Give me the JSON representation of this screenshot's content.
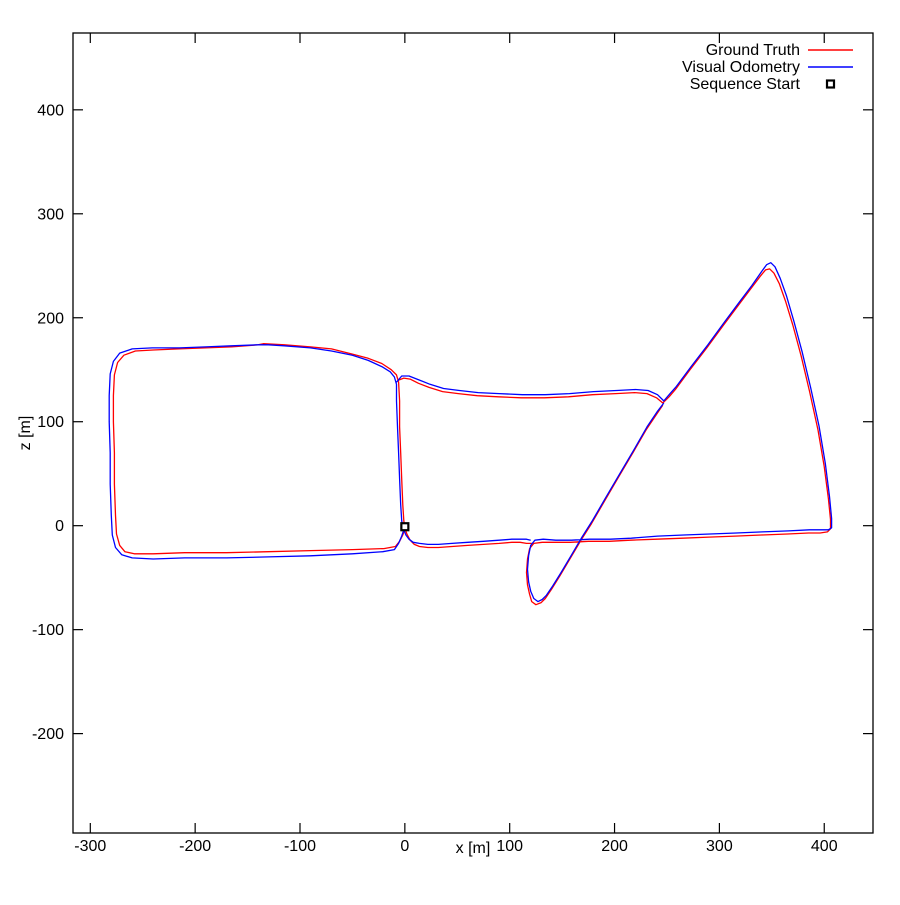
{
  "figure": {
    "background": "#ffffff",
    "axis_color": "#000000"
  },
  "chart_data": {
    "type": "line",
    "title": "",
    "xlabel": "x [m]",
    "ylabel": "z [m]",
    "xlim": [
      -316.5,
      446.5
    ],
    "ylim": [
      -295.6,
      473.9
    ],
    "x_ticks": [
      -300,
      -200,
      -100,
      0,
      100,
      200,
      300,
      400
    ],
    "y_ticks": [
      400,
      300,
      200,
      100,
      0,
      -100,
      -200
    ],
    "grid": false,
    "legend_position": "top-right-inside",
    "series": [
      {
        "name": "Ground Truth",
        "color": "#ff0000",
        "style": "line",
        "segments": [
          [
            [
              0,
              -3
            ],
            [
              -2,
              -9
            ],
            [
              -5,
              -15
            ],
            [
              -9,
              -20
            ],
            [
              -20,
              -22
            ],
            [
              -50,
              -23
            ],
            [
              -90,
              -24
            ],
            [
              -130,
              -25
            ],
            [
              -170,
              -26
            ],
            [
              -210,
              -26
            ],
            [
              -240,
              -27
            ],
            [
              -258,
              -27
            ],
            [
              -267,
              -25
            ],
            [
              -272,
              -19
            ],
            [
              -275,
              -8
            ],
            [
              -276,
              10
            ],
            [
              -277,
              40
            ],
            [
              -277,
              70
            ],
            [
              -278,
              100
            ],
            [
              -278,
              125
            ],
            [
              -277,
              145
            ],
            [
              -274,
              157
            ],
            [
              -268,
              164
            ],
            [
              -257,
              168
            ],
            [
              -240,
              169
            ],
            [
              -215,
              170
            ],
            [
              -190,
              171
            ],
            [
              -165,
              172
            ],
            [
              -140,
              174
            ],
            [
              -135,
              175
            ],
            [
              -115,
              174
            ],
            [
              -90,
              172
            ],
            [
              -70,
              170
            ],
            [
              -50,
              165
            ],
            [
              -35,
              161
            ],
            [
              -22,
              156
            ],
            [
              -13,
              150
            ],
            [
              -8,
              145
            ],
            [
              -6,
              138
            ],
            [
              -5,
              120
            ],
            [
              -5,
              95
            ],
            [
              -4,
              70
            ],
            [
              -3,
              45
            ],
            [
              -2,
              20
            ],
            [
              -1,
              5
            ],
            [
              0,
              -2
            ]
          ],
          [
            [
              -6,
              140
            ],
            [
              -1,
              142
            ],
            [
              5,
              141
            ],
            [
              13,
              137
            ],
            [
              23,
              133
            ],
            [
              36,
              129
            ],
            [
              51,
              127
            ],
            [
              69,
              125
            ],
            [
              89,
              124
            ],
            [
              111,
              123
            ],
            [
              133,
              123
            ],
            [
              156,
              124
            ],
            [
              179,
              126
            ],
            [
              201,
              127
            ],
            [
              219,
              128
            ],
            [
              231,
              127
            ],
            [
              240,
              123
            ],
            [
              246,
              118
            ],
            [
              252,
              124
            ],
            [
              258,
              131
            ],
            [
              272,
              150
            ],
            [
              288,
              171
            ],
            [
              304,
              193
            ],
            [
              318,
              212
            ],
            [
              330,
              228
            ],
            [
              339,
              240
            ],
            [
              344,
              246
            ],
            [
              348,
              247
            ],
            [
              352,
              243
            ],
            [
              357,
              233
            ],
            [
              363,
              216
            ],
            [
              370,
              193
            ],
            [
              378,
              163
            ],
            [
              386,
              129
            ],
            [
              394,
              92
            ],
            [
              400,
              57
            ],
            [
              404,
              26
            ],
            [
              406,
              6
            ],
            [
              406,
              -3
            ],
            [
              403,
              -6
            ],
            [
              396,
              -7
            ],
            [
              385,
              -7
            ],
            [
              365,
              -8
            ],
            [
              340,
              -9
            ],
            [
              315,
              -10
            ],
            [
              290,
              -11
            ],
            [
              265,
              -12
            ],
            [
              240,
              -13
            ],
            [
              215,
              -14
            ],
            [
              195,
              -15
            ],
            [
              175,
              -15
            ],
            [
              158,
              -16
            ],
            [
              143,
              -16
            ],
            [
              131,
              -16
            ],
            [
              123,
              -17
            ],
            [
              119,
              -22
            ],
            [
              117,
              -32
            ],
            [
              116,
              -45
            ],
            [
              117,
              -57
            ],
            [
              119,
              -66
            ],
            [
              121,
              -73
            ],
            [
              125,
              -76
            ],
            [
              130,
              -74
            ],
            [
              134,
              -70
            ],
            [
              140,
              -61
            ],
            [
              148,
              -48
            ],
            [
              158,
              -31
            ],
            [
              168,
              -14
            ],
            [
              178,
              2
            ],
            [
              190,
              23
            ],
            [
              204,
              47
            ],
            [
              218,
              71
            ],
            [
              230,
              92
            ],
            [
              240,
              107
            ],
            [
              246,
              116
            ]
          ],
          [
            [
              0,
              -2
            ],
            [
              2,
              -8
            ],
            [
              5,
              -14
            ],
            [
              9,
              -18
            ],
            [
              14,
              -20
            ],
            [
              22,
              -21
            ],
            [
              32,
              -21
            ],
            [
              45,
              -20
            ],
            [
              60,
              -19
            ],
            [
              75,
              -18
            ],
            [
              90,
              -17
            ],
            [
              102,
              -16
            ],
            [
              110,
              -16
            ],
            [
              116,
              -17
            ],
            [
              121,
              -17
            ]
          ]
        ]
      },
      {
        "name": "Visual Odometry",
        "color": "#0000ff",
        "style": "line",
        "segments": [
          [
            [
              -1,
              -4
            ],
            [
              -3,
              -10
            ],
            [
              -6,
              -17
            ],
            [
              -10,
              -23
            ],
            [
              -21,
              -25
            ],
            [
              -50,
              -27
            ],
            [
              -90,
              -29
            ],
            [
              -130,
              -30
            ],
            [
              -170,
              -31
            ],
            [
              -210,
              -31
            ],
            [
              -240,
              -32
            ],
            [
              -260,
              -31
            ],
            [
              -270,
              -28
            ],
            [
              -276,
              -21
            ],
            [
              -279,
              -9
            ],
            [
              -280,
              10
            ],
            [
              -281,
              40
            ],
            [
              -281,
              70
            ],
            [
              -282,
              100
            ],
            [
              -282,
              125
            ],
            [
              -281,
              146
            ],
            [
              -278,
              158
            ],
            [
              -272,
              166
            ],
            [
              -260,
              170
            ],
            [
              -241,
              171
            ],
            [
              -215,
              171
            ],
            [
              -190,
              172
            ],
            [
              -165,
              173
            ],
            [
              -140,
              174
            ],
            [
              -130,
              174
            ],
            [
              -115,
              173
            ],
            [
              -90,
              171
            ],
            [
              -70,
              168
            ],
            [
              -50,
              164
            ],
            [
              -35,
              159
            ],
            [
              -22,
              153
            ],
            [
              -14,
              148
            ],
            [
              -10,
              143
            ],
            [
              -8,
              136
            ],
            [
              -8,
              120
            ],
            [
              -7,
              95
            ],
            [
              -6,
              70
            ],
            [
              -5,
              45
            ],
            [
              -4,
              20
            ],
            [
              -3,
              5
            ],
            [
              -2,
              -2
            ]
          ],
          [
            [
              -8,
              138
            ],
            [
              -3,
              144
            ],
            [
              4,
              144
            ],
            [
              14,
              140
            ],
            [
              24,
              136
            ],
            [
              37,
              132
            ],
            [
              52,
              130
            ],
            [
              70,
              128
            ],
            [
              90,
              127
            ],
            [
              112,
              126
            ],
            [
              134,
              126
            ],
            [
              157,
              127
            ],
            [
              180,
              129
            ],
            [
              202,
              130
            ],
            [
              220,
              131
            ],
            [
              232,
              130
            ],
            [
              241,
              126
            ],
            [
              247,
              120
            ],
            [
              253,
              127
            ],
            [
              259,
              134
            ],
            [
              273,
              153
            ],
            [
              289,
              174
            ],
            [
              305,
              196
            ],
            [
              319,
              215
            ],
            [
              331,
              231
            ],
            [
              340,
              244
            ],
            [
              345,
              251
            ],
            [
              349,
              253
            ],
            [
              353,
              249
            ],
            [
              358,
              238
            ],
            [
              364,
              221
            ],
            [
              371,
              197
            ],
            [
              379,
              167
            ],
            [
              387,
              133
            ],
            [
              395,
              96
            ],
            [
              401,
              60
            ],
            [
              405,
              28
            ],
            [
              407,
              7
            ],
            [
              407,
              -2
            ],
            [
              404,
              -4
            ],
            [
              397,
              -4
            ],
            [
              386,
              -4
            ],
            [
              366,
              -5
            ],
            [
              341,
              -6
            ],
            [
              316,
              -7
            ],
            [
              291,
              -8
            ],
            [
              266,
              -9
            ],
            [
              241,
              -10
            ],
            [
              216,
              -12
            ],
            [
              196,
              -13
            ],
            [
              176,
              -13
            ],
            [
              159,
              -14
            ],
            [
              144,
              -14
            ],
            [
              132,
              -13
            ],
            [
              124,
              -14
            ],
            [
              120,
              -19
            ],
            [
              118,
              -29
            ],
            [
              117,
              -42
            ],
            [
              118,
              -54
            ],
            [
              120,
              -63
            ],
            [
              123,
              -70
            ],
            [
              127,
              -73
            ],
            [
              131,
              -71
            ],
            [
              135,
              -67
            ],
            [
              141,
              -58
            ],
            [
              149,
              -45
            ],
            [
              159,
              -28
            ],
            [
              169,
              -11
            ],
            [
              179,
              5
            ],
            [
              191,
              26
            ],
            [
              205,
              50
            ],
            [
              219,
              74
            ],
            [
              231,
              95
            ],
            [
              241,
              110
            ],
            [
              247,
              118
            ]
          ],
          [
            [
              -1,
              -4
            ],
            [
              1,
              -9
            ],
            [
              4,
              -13
            ],
            [
              8,
              -16
            ],
            [
              14,
              -17
            ],
            [
              22,
              -18
            ],
            [
              32,
              -18
            ],
            [
              45,
              -17
            ],
            [
              60,
              -16
            ],
            [
              75,
              -15
            ],
            [
              90,
              -14
            ],
            [
              102,
              -13
            ],
            [
              110,
              -13
            ],
            [
              116,
              -13
            ],
            [
              120,
              -14
            ]
          ]
        ]
      },
      {
        "name": "Sequence Start",
        "color": "#000000",
        "style": "marker",
        "marker": "open-square",
        "points": [
          [
            0,
            -1
          ]
        ]
      }
    ]
  }
}
